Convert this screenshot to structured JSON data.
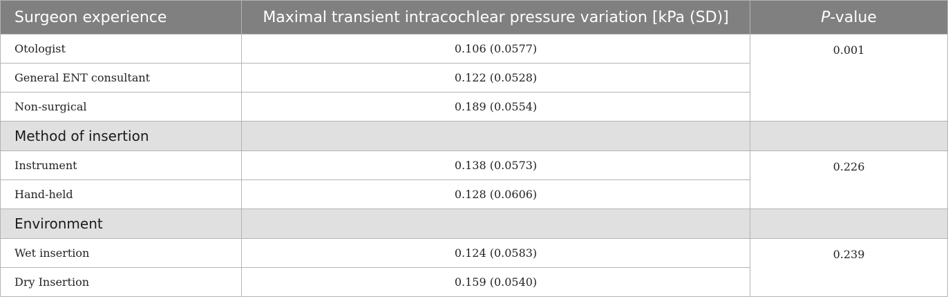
{
  "header": {
    "col1": "Surgeon experience",
    "col2": "Maximal transient intracochlear pressure variation [kPa (SD)]",
    "col3_italic": "P",
    "col3_rest": "-value"
  },
  "groups": [
    {
      "rows": [
        {
          "label": "Otologist",
          "value": "0.106 (0.0577)"
        },
        {
          "label": "General ENT consultant",
          "value": "0.122 (0.0528)"
        },
        {
          "label": "Non-surgical",
          "value": "0.189 (0.0554)"
        }
      ],
      "p_value": "0.001"
    },
    {
      "section": "Method of insertion",
      "rows": [
        {
          "label": "Instrument",
          "value": "0.138 (0.0573)"
        },
        {
          "label": "Hand-held",
          "value": "0.128 (0.0606)"
        }
      ],
      "p_value": "0.226"
    },
    {
      "section": "Environment",
      "rows": [
        {
          "label": "Wet insertion",
          "value": "0.124 (0.0583)"
        },
        {
          "label": "Dry Insertion",
          "value": "0.159 (0.0540)"
        }
      ],
      "p_value": "0.239"
    }
  ]
}
